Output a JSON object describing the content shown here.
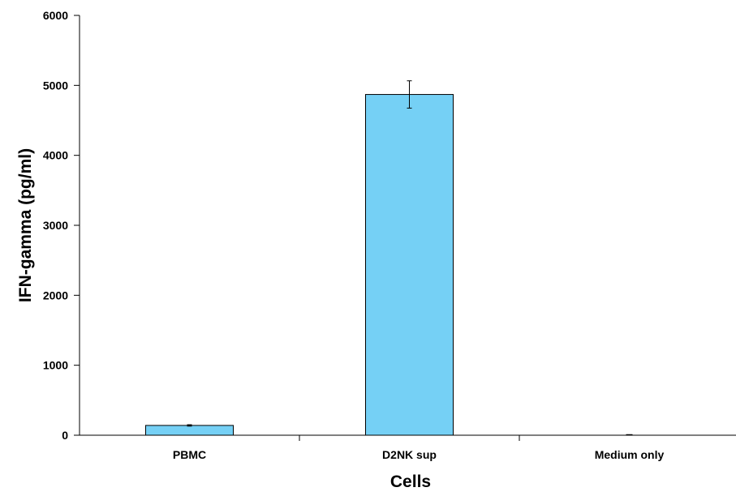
{
  "chart_data": {
    "type": "bar",
    "categories": [
      "PBMC",
      "D2NK sup",
      "Medium only"
    ],
    "values": [
      140,
      4870,
      0
    ],
    "error": [
      10,
      195,
      0
    ],
    "title": "",
    "xlabel": "Cells",
    "ylabel": "IFN-gamma (pg/ml)",
    "ylim": [
      0,
      6000
    ],
    "yticks": [
      0,
      1000,
      2000,
      3000,
      4000,
      5000,
      6000
    ],
    "ytick_labels": [
      "0",
      "1000",
      "2000",
      "3000",
      "4000",
      "5000",
      "6000"
    ],
    "grid": false,
    "legend": "none",
    "bar_color": "#75D0F5",
    "bar_edge_color": "#000000"
  }
}
